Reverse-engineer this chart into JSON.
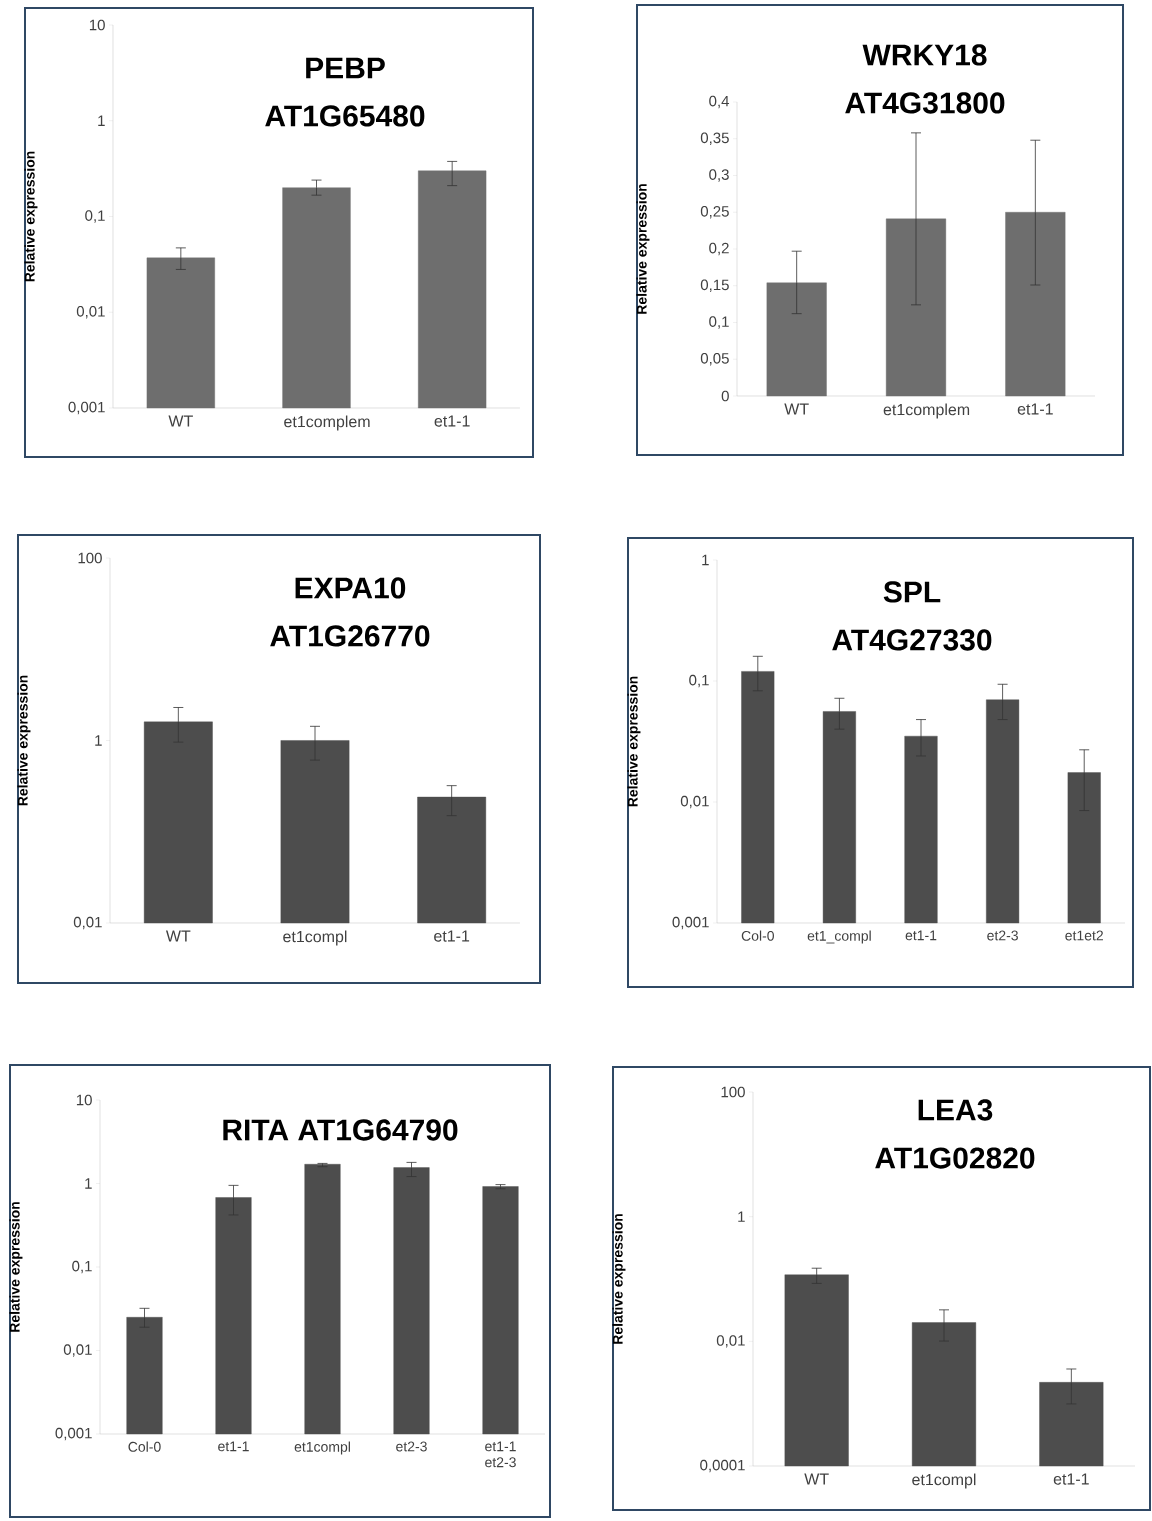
{
  "chart_data": [
    {
      "type": "bar",
      "title": "PEBP",
      "subtitle": "AT1G65480",
      "ylabel": "Relative expression",
      "categories": [
        "WT",
        "et1complem",
        "et1-1"
      ],
      "values": [
        0.037,
        0.2,
        0.3
      ],
      "errors": [
        [
          0.028,
          0.047
        ],
        [
          0.167,
          0.24
        ],
        [
          0.21,
          0.376
        ]
      ],
      "color": "#6e6e6e",
      "log": true,
      "ylim": [
        0.001,
        10
      ],
      "yticks": [
        {
          "value": 0.001,
          "label": "0,001"
        },
        {
          "value": 0.01,
          "label": "0,01"
        },
        {
          "value": 0.1,
          "label": "0,1"
        },
        1,
        10
      ]
    },
    {
      "type": "bar",
      "title": "WRKY18",
      "subtitle": "AT4G31800",
      "ylabel": "Relative expression",
      "categories": [
        "WT",
        "et1complem",
        "et1-1"
      ],
      "values": [
        0.154,
        0.241,
        0.25
      ],
      "errors": [
        [
          0.112,
          0.197
        ],
        [
          0.124,
          0.358
        ],
        [
          0.151,
          0.348
        ]
      ],
      "color": "#6e6e6e",
      "ylim": [
        0,
        0.4
      ],
      "yticks": [
        0,
        {
          "value": 0.05,
          "label": "0,05"
        },
        {
          "value": 0.1,
          "label": "0,1"
        },
        {
          "value": 0.15,
          "label": "0,15"
        },
        {
          "value": 0.2,
          "label": "0,2"
        },
        {
          "value": 0.25,
          "label": "0,25"
        },
        {
          "value": 0.3,
          "label": "0,3"
        },
        {
          "value": 0.35,
          "label": "0,35"
        },
        {
          "value": 0.4,
          "label": "0,4"
        }
      ]
    },
    {
      "type": "bar",
      "title": "EXPA10",
      "subtitle": "AT1G26770",
      "ylabel": "Relative expression",
      "categories": [
        "WT",
        "et1compl",
        "et1-1"
      ],
      "values": [
        1.6,
        1.0,
        0.24
      ],
      "errors": [
        [
          0.96,
          2.3
        ],
        [
          0.61,
          1.43
        ],
        [
          0.15,
          0.32
        ]
      ],
      "color": "#4d4d4d",
      "log": true,
      "ylim": [
        0.01,
        100
      ],
      "yticks": [
        {
          "value": 0.01,
          "label": "0,01"
        },
        1,
        100
      ]
    },
    {
      "type": "bar",
      "title": "SPL",
      "subtitle": "AT4G27330",
      "ylabel": "Relative expression",
      "categories": [
        "Col-0",
        "et1_compl",
        "et1-1",
        "et2-3",
        "et1et2"
      ],
      "values": [
        0.12,
        0.056,
        0.035,
        0.07,
        0.0175
      ],
      "errors": [
        [
          0.083,
          0.16
        ],
        [
          0.04,
          0.072
        ],
        [
          0.024,
          0.048
        ],
        [
          0.048,
          0.094
        ],
        [
          0.0085,
          0.027
        ]
      ],
      "color": "#4d4d4d",
      "log": true,
      "ylim": [
        0.001,
        1
      ],
      "yticks": [
        {
          "value": 0.001,
          "label": "0,001"
        },
        {
          "value": 0.01,
          "label": "0,01"
        },
        {
          "value": 0.1,
          "label": "0,1"
        },
        1
      ]
    },
    {
      "type": "bar",
      "title": "RITA AT1G64790",
      "ylabel": "Relative expression",
      "categories": [
        "Col-0",
        "et1-1",
        "et1compl",
        "et2-3",
        "et1-1 et2-3"
      ],
      "values": [
        0.025,
        0.68,
        1.7,
        1.55,
        0.92
      ],
      "errors": [
        [
          0.019,
          0.032
        ],
        [
          0.42,
          0.95
        ],
        [
          1.59,
          1.74
        ],
        [
          1.21,
          1.79
        ],
        [
          0.865,
          0.97
        ]
      ],
      "color": "#4d4d4d",
      "log": true,
      "ylim": [
        0.001,
        10
      ],
      "yticks": [
        {
          "value": 0.001,
          "label": "0,001"
        },
        {
          "value": 0.01,
          "label": "0,01"
        },
        {
          "value": 0.1,
          "label": "0,1"
        },
        1,
        10
      ]
    },
    {
      "type": "bar",
      "title": "LEA3",
      "subtitle": "AT1G02820",
      "ylabel": "Relative expression",
      "categories": [
        "WT",
        "et1compl",
        "et1-1"
      ],
      "values": [
        0.117,
        0.02,
        0.0022
      ],
      "errors": [
        [
          0.085,
          0.149
        ],
        [
          0.0101,
          0.032
        ],
        [
          0.00099,
          0.0036
        ]
      ],
      "color": "#4d4d4d",
      "log": true,
      "ylim": [
        0.0001,
        100
      ],
      "yticks": [
        {
          "value": 0.0001,
          "label": "0,0001"
        },
        {
          "value": 0.01,
          "label": "0,01"
        },
        1,
        100
      ]
    }
  ]
}
